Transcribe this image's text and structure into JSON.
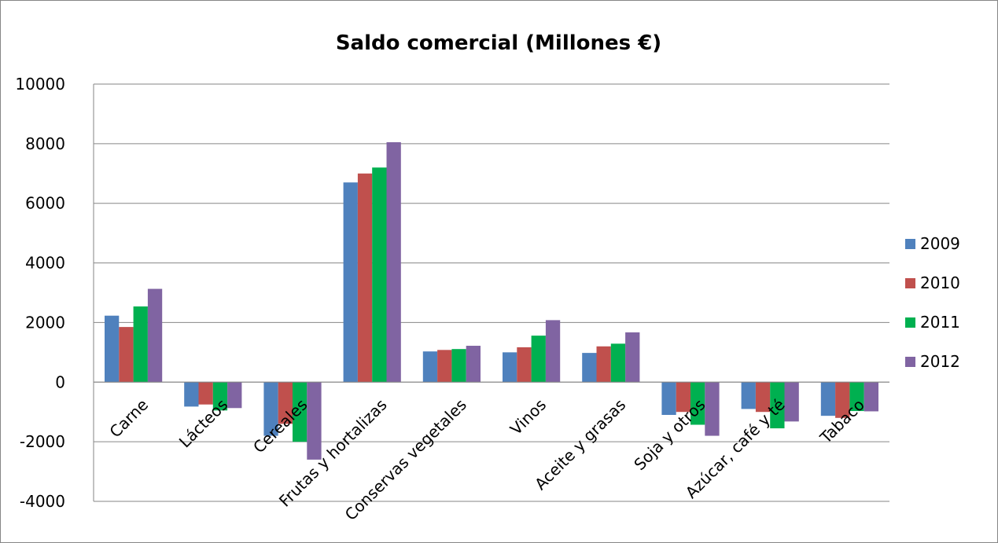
{
  "chart_data": {
    "type": "bar",
    "title": "Saldo comercial (Millones €)",
    "xlabel": "",
    "ylabel": "",
    "ylim": [
      -4000,
      10000
    ],
    "yticks": [
      10000,
      8000,
      6000,
      4000,
      2000,
      0,
      -2000,
      -4000
    ],
    "grid": true,
    "legend_position": "right",
    "categories": [
      "Carne",
      "Lácteos",
      "Cereales",
      "Frutas y hortalizas",
      "Conservas vegetales",
      "Vinos",
      "Aceite y grasas",
      "Soja y otros",
      "Azúcar, café y té",
      "Tabaco"
    ],
    "series": [
      {
        "name": "2009",
        "color": "#4F81BD",
        "values": [
          2230,
          -820,
          -1800,
          6700,
          1030,
          1000,
          980,
          -1100,
          -900,
          -1130
        ]
      },
      {
        "name": "2010",
        "color": "#C0504D",
        "values": [
          1850,
          -750,
          -1400,
          7000,
          1080,
          1170,
          1200,
          -1000,
          -1000,
          -1200
        ]
      },
      {
        "name": "2011",
        "color": "#00B050",
        "values": [
          2540,
          -950,
          -2000,
          7200,
          1110,
          1560,
          1290,
          -1430,
          -1550,
          -970
        ]
      },
      {
        "name": "2012",
        "color": "#8064A2",
        "values": [
          3130,
          -870,
          -2600,
          8050,
          1220,
          2080,
          1670,
          -1800,
          -1320,
          -980
        ]
      }
    ]
  }
}
